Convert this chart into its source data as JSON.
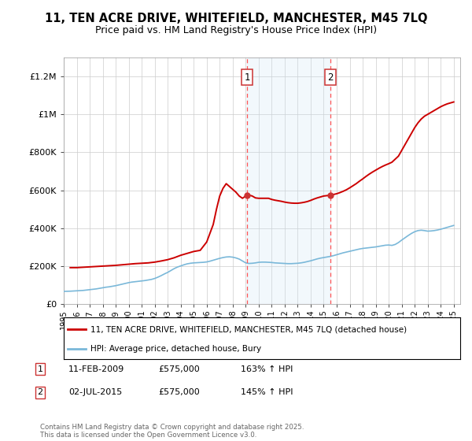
{
  "title_line1": "11, TEN ACRE DRIVE, WHITEFIELD, MANCHESTER, M45 7LQ",
  "title_line2": "Price paid vs. HM Land Registry's House Price Index (HPI)",
  "title_fontsize": 10.5,
  "subtitle_fontsize": 9,
  "ylabel_ticks": [
    "£0",
    "£200K",
    "£400K",
    "£600K",
    "£800K",
    "£1M",
    "£1.2M"
  ],
  "ytick_values": [
    0,
    200000,
    400000,
    600000,
    800000,
    1000000,
    1200000
  ],
  "ylim": [
    0,
    1300000
  ],
  "xlim_start": 1995,
  "xlim_end": 2025.5,
  "background_color": "#ffffff",
  "plot_bg_color": "#ffffff",
  "grid_color": "#cccccc",
  "hpi_line_color": "#7ab8d9",
  "price_line_color": "#cc0000",
  "marker_fill": "#cc3333",
  "marker1_x": 2009.11,
  "marker1_y": 575000,
  "marker2_x": 2015.5,
  "marker2_y": 575000,
  "dashed_line_color": "#ff5555",
  "shade_color": "#cce4f5",
  "legend_label1": "11, TEN ACRE DRIVE, WHITEFIELD, MANCHESTER, M45 7LQ (detached house)",
  "legend_label2": "HPI: Average price, detached house, Bury",
  "annotation1_label": "1",
  "annotation2_label": "2",
  "note1_date": "11-FEB-2009",
  "note1_price": "£575,000",
  "note1_hpi": "163% ↑ HPI",
  "note2_date": "02-JUL-2015",
  "note2_price": "£575,000",
  "note2_hpi": "145% ↑ HPI",
  "footer": "Contains HM Land Registry data © Crown copyright and database right 2025.\nThis data is licensed under the Open Government Licence v3.0.",
  "hpi_data_x": [
    1995,
    1995.25,
    1995.5,
    1995.75,
    1996,
    1996.25,
    1996.5,
    1996.75,
    1997,
    1997.25,
    1997.5,
    1997.75,
    1998,
    1998.25,
    1998.5,
    1998.75,
    1999,
    1999.25,
    1999.5,
    1999.75,
    2000,
    2000.25,
    2000.5,
    2000.75,
    2001,
    2001.25,
    2001.5,
    2001.75,
    2002,
    2002.25,
    2002.5,
    2002.75,
    2003,
    2003.25,
    2003.5,
    2003.75,
    2004,
    2004.25,
    2004.5,
    2004.75,
    2005,
    2005.25,
    2005.5,
    2005.75,
    2006,
    2006.25,
    2006.5,
    2006.75,
    2007,
    2007.25,
    2007.5,
    2007.75,
    2008,
    2008.25,
    2008.5,
    2008.75,
    2009,
    2009.25,
    2009.5,
    2009.75,
    2010,
    2010.25,
    2010.5,
    2010.75,
    2011,
    2011.25,
    2011.5,
    2011.75,
    2012,
    2012.25,
    2012.5,
    2012.75,
    2013,
    2013.25,
    2013.5,
    2013.75,
    2014,
    2014.25,
    2014.5,
    2014.75,
    2015,
    2015.25,
    2015.5,
    2015.75,
    2016,
    2016.25,
    2016.5,
    2016.75,
    2017,
    2017.25,
    2017.5,
    2017.75,
    2018,
    2018.25,
    2018.5,
    2018.75,
    2019,
    2019.25,
    2019.5,
    2019.75,
    2020,
    2020.25,
    2020.5,
    2020.75,
    2021,
    2021.25,
    2021.5,
    2021.75,
    2022,
    2022.25,
    2022.5,
    2022.75,
    2023,
    2023.25,
    2023.5,
    2023.75,
    2024,
    2024.25,
    2024.5,
    2024.75,
    2025
  ],
  "hpi_data_y": [
    68000,
    68500,
    69000,
    70000,
    71000,
    72000,
    73000,
    75000,
    77000,
    79000,
    81000,
    84000,
    87000,
    90000,
    92000,
    95000,
    98000,
    102000,
    106000,
    110000,
    114000,
    117000,
    119000,
    121000,
    123000,
    125000,
    128000,
    131000,
    136000,
    143000,
    151000,
    160000,
    168000,
    178000,
    188000,
    196000,
    202000,
    208000,
    213000,
    216000,
    218000,
    219000,
    220000,
    221000,
    223000,
    227000,
    232000,
    237000,
    242000,
    246000,
    249000,
    250000,
    248000,
    244000,
    238000,
    228000,
    218000,
    215000,
    216000,
    218000,
    221000,
    222000,
    222000,
    221000,
    220000,
    218000,
    217000,
    216000,
    215000,
    214000,
    214000,
    215000,
    216000,
    218000,
    221000,
    225000,
    229000,
    234000,
    239000,
    243000,
    246000,
    249000,
    252000,
    256000,
    261000,
    266000,
    271000,
    275000,
    279000,
    283000,
    287000,
    291000,
    294000,
    296000,
    298000,
    300000,
    302000,
    305000,
    308000,
    311000,
    312000,
    310000,
    315000,
    325000,
    338000,
    350000,
    362000,
    373000,
    382000,
    388000,
    390000,
    388000,
    385000,
    386000,
    388000,
    391000,
    395000,
    400000,
    405000,
    410000,
    415000
  ],
  "price_data_x": [
    1995.5,
    1996.0,
    1996.5,
    1997.0,
    1997.5,
    1998.0,
    1998.5,
    1999.0,
    1999.5,
    2000.0,
    2000.5,
    2001.0,
    2001.5,
    2002.0,
    2002.5,
    2003.0,
    2003.5,
    2004.0,
    2004.5,
    2005.0,
    2005.5,
    2006.0,
    2006.5,
    2006.75,
    2007.0,
    2007.25,
    2007.5,
    2007.75,
    2008.0,
    2008.25,
    2008.5,
    2008.75,
    2009.11,
    2009.25,
    2009.5,
    2009.75,
    2010.0,
    2010.25,
    2010.5,
    2010.75,
    2011.0,
    2011.25,
    2011.5,
    2011.75,
    2012.0,
    2012.25,
    2012.5,
    2012.75,
    2013.0,
    2013.25,
    2013.5,
    2013.75,
    2014.0,
    2014.25,
    2014.5,
    2015.0,
    2015.25,
    2015.5,
    2015.75,
    2016.0,
    2016.25,
    2016.5,
    2016.75,
    2017.0,
    2017.25,
    2017.5,
    2017.75,
    2018.0,
    2018.25,
    2018.5,
    2018.75,
    2019.0,
    2019.25,
    2019.5,
    2019.75,
    2020.0,
    2020.25,
    2020.75,
    2021.0,
    2021.25,
    2021.5,
    2021.75,
    2022.0,
    2022.25,
    2022.5,
    2022.75,
    2023.0,
    2023.25,
    2023.5,
    2023.75,
    2024.0,
    2024.25,
    2024.5,
    2024.75,
    2025.0
  ],
  "price_data_y": [
    193000,
    193000,
    195000,
    197000,
    199000,
    201000,
    203000,
    205000,
    208000,
    211000,
    214000,
    216000,
    218000,
    222000,
    228000,
    235000,
    245000,
    258000,
    268000,
    278000,
    284000,
    328000,
    420000,
    500000,
    570000,
    610000,
    635000,
    620000,
    605000,
    590000,
    570000,
    558000,
    575000,
    575000,
    570000,
    560000,
    558000,
    558000,
    558000,
    558000,
    552000,
    548000,
    545000,
    542000,
    538000,
    535000,
    533000,
    532000,
    532000,
    534000,
    537000,
    541000,
    547000,
    554000,
    560000,
    570000,
    572000,
    575000,
    578000,
    582000,
    588000,
    595000,
    603000,
    613000,
    624000,
    635000,
    648000,
    660000,
    673000,
    685000,
    696000,
    706000,
    716000,
    725000,
    733000,
    740000,
    748000,
    780000,
    810000,
    840000,
    870000,
    900000,
    930000,
    955000,
    975000,
    990000,
    1000000,
    1010000,
    1020000,
    1030000,
    1040000,
    1048000,
    1055000,
    1060000,
    1065000
  ]
}
